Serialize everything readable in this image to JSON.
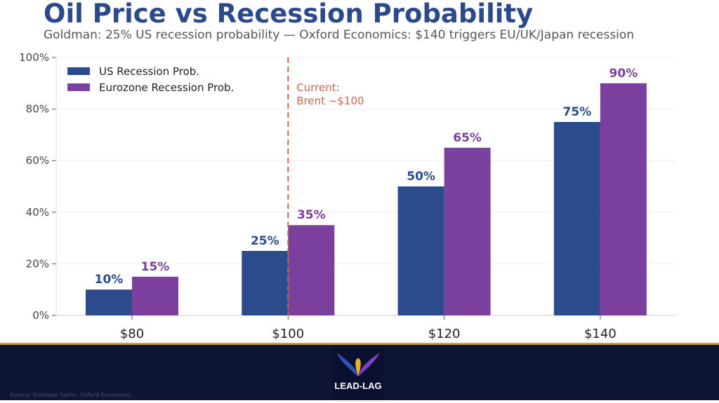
{
  "chart_data": {
    "type": "bar",
    "title": "Oil Price vs Recession Probability",
    "subtitle": "Goldman: 25% US recession probability — Oxford Economics: $140 triggers EU/UK/Japan recession",
    "categories": [
      "$80",
      "$100",
      "$120",
      "$140"
    ],
    "series": [
      {
        "name": "US Recession Prob.",
        "values": [
          10,
          25,
          50,
          75
        ],
        "color": "#2b4b8c"
      },
      {
        "name": "Eurozone Recession Prob.",
        "values": [
          15,
          35,
          65,
          90
        ],
        "color": "#7b3f9e"
      }
    ],
    "ylim": [
      0,
      100
    ],
    "yticks": [
      "0%",
      "20%",
      "40%",
      "60%",
      "80%",
      "100%"
    ],
    "grid": true,
    "legend": "top-left",
    "annotation": {
      "category": "$100",
      "text": [
        "Current:",
        "Brent ~$100"
      ],
      "color": "#c8694f"
    }
  },
  "footer": {
    "source": "Source: Goldman Sachs, Oxford Economics",
    "logo_text": "LEAD-LAG"
  }
}
